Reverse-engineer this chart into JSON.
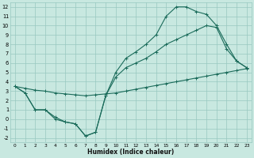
{
  "bg_color": "#c8e8e0",
  "grid_color": "#98c8c0",
  "line_color": "#1a6b5a",
  "xlim": [
    -0.5,
    23.5
  ],
  "ylim": [
    -2.5,
    12.5
  ],
  "xticks": [
    0,
    1,
    2,
    3,
    4,
    5,
    6,
    7,
    8,
    9,
    10,
    11,
    12,
    13,
    14,
    15,
    16,
    17,
    18,
    19,
    20,
    21,
    22,
    23
  ],
  "yticks": [
    -2,
    -1,
    0,
    1,
    2,
    3,
    4,
    5,
    6,
    7,
    8,
    9,
    10,
    11,
    12
  ],
  "xlabel": "Humidex (Indice chaleur)",
  "line_straight_x": [
    0,
    1,
    2,
    3,
    4,
    5,
    6,
    7,
    8,
    9,
    10,
    11,
    12,
    13,
    14,
    15,
    16,
    17,
    18,
    19,
    20,
    21,
    22,
    23
  ],
  "line_straight_y": [
    3.5,
    3.3,
    3.1,
    3.0,
    2.8,
    2.7,
    2.6,
    2.5,
    2.6,
    2.7,
    2.8,
    3.0,
    3.2,
    3.4,
    3.6,
    3.8,
    4.0,
    4.2,
    4.4,
    4.6,
    4.8,
    5.0,
    5.2,
    5.4
  ],
  "line_mid_x": [
    0,
    1,
    2,
    3,
    4,
    5,
    6,
    7,
    8,
    9,
    10,
    11,
    12,
    13,
    14,
    15,
    16,
    17,
    18,
    19,
    20,
    21,
    22,
    23
  ],
  "line_mid_y": [
    3.5,
    2.8,
    1.0,
    1.0,
    0.2,
    -0.3,
    -0.5,
    -1.8,
    -1.4,
    2.5,
    4.5,
    5.5,
    6.0,
    6.5,
    7.2,
    8.0,
    8.5,
    9.0,
    9.5,
    10.0,
    9.8,
    7.5,
    6.2,
    5.5
  ],
  "line_top_x": [
    0,
    1,
    2,
    3,
    4,
    5,
    6,
    7,
    8,
    9,
    10,
    11,
    12,
    13,
    14,
    15,
    16,
    17,
    18,
    19,
    20,
    21,
    22,
    23
  ],
  "line_top_y": [
    3.5,
    2.8,
    1.0,
    1.0,
    0.0,
    -0.3,
    -0.5,
    -1.8,
    -1.4,
    2.5,
    5.0,
    6.5,
    7.2,
    8.0,
    9.0,
    11.0,
    12.0,
    12.0,
    11.5,
    11.2,
    10.0,
    8.0,
    6.2,
    5.5
  ]
}
